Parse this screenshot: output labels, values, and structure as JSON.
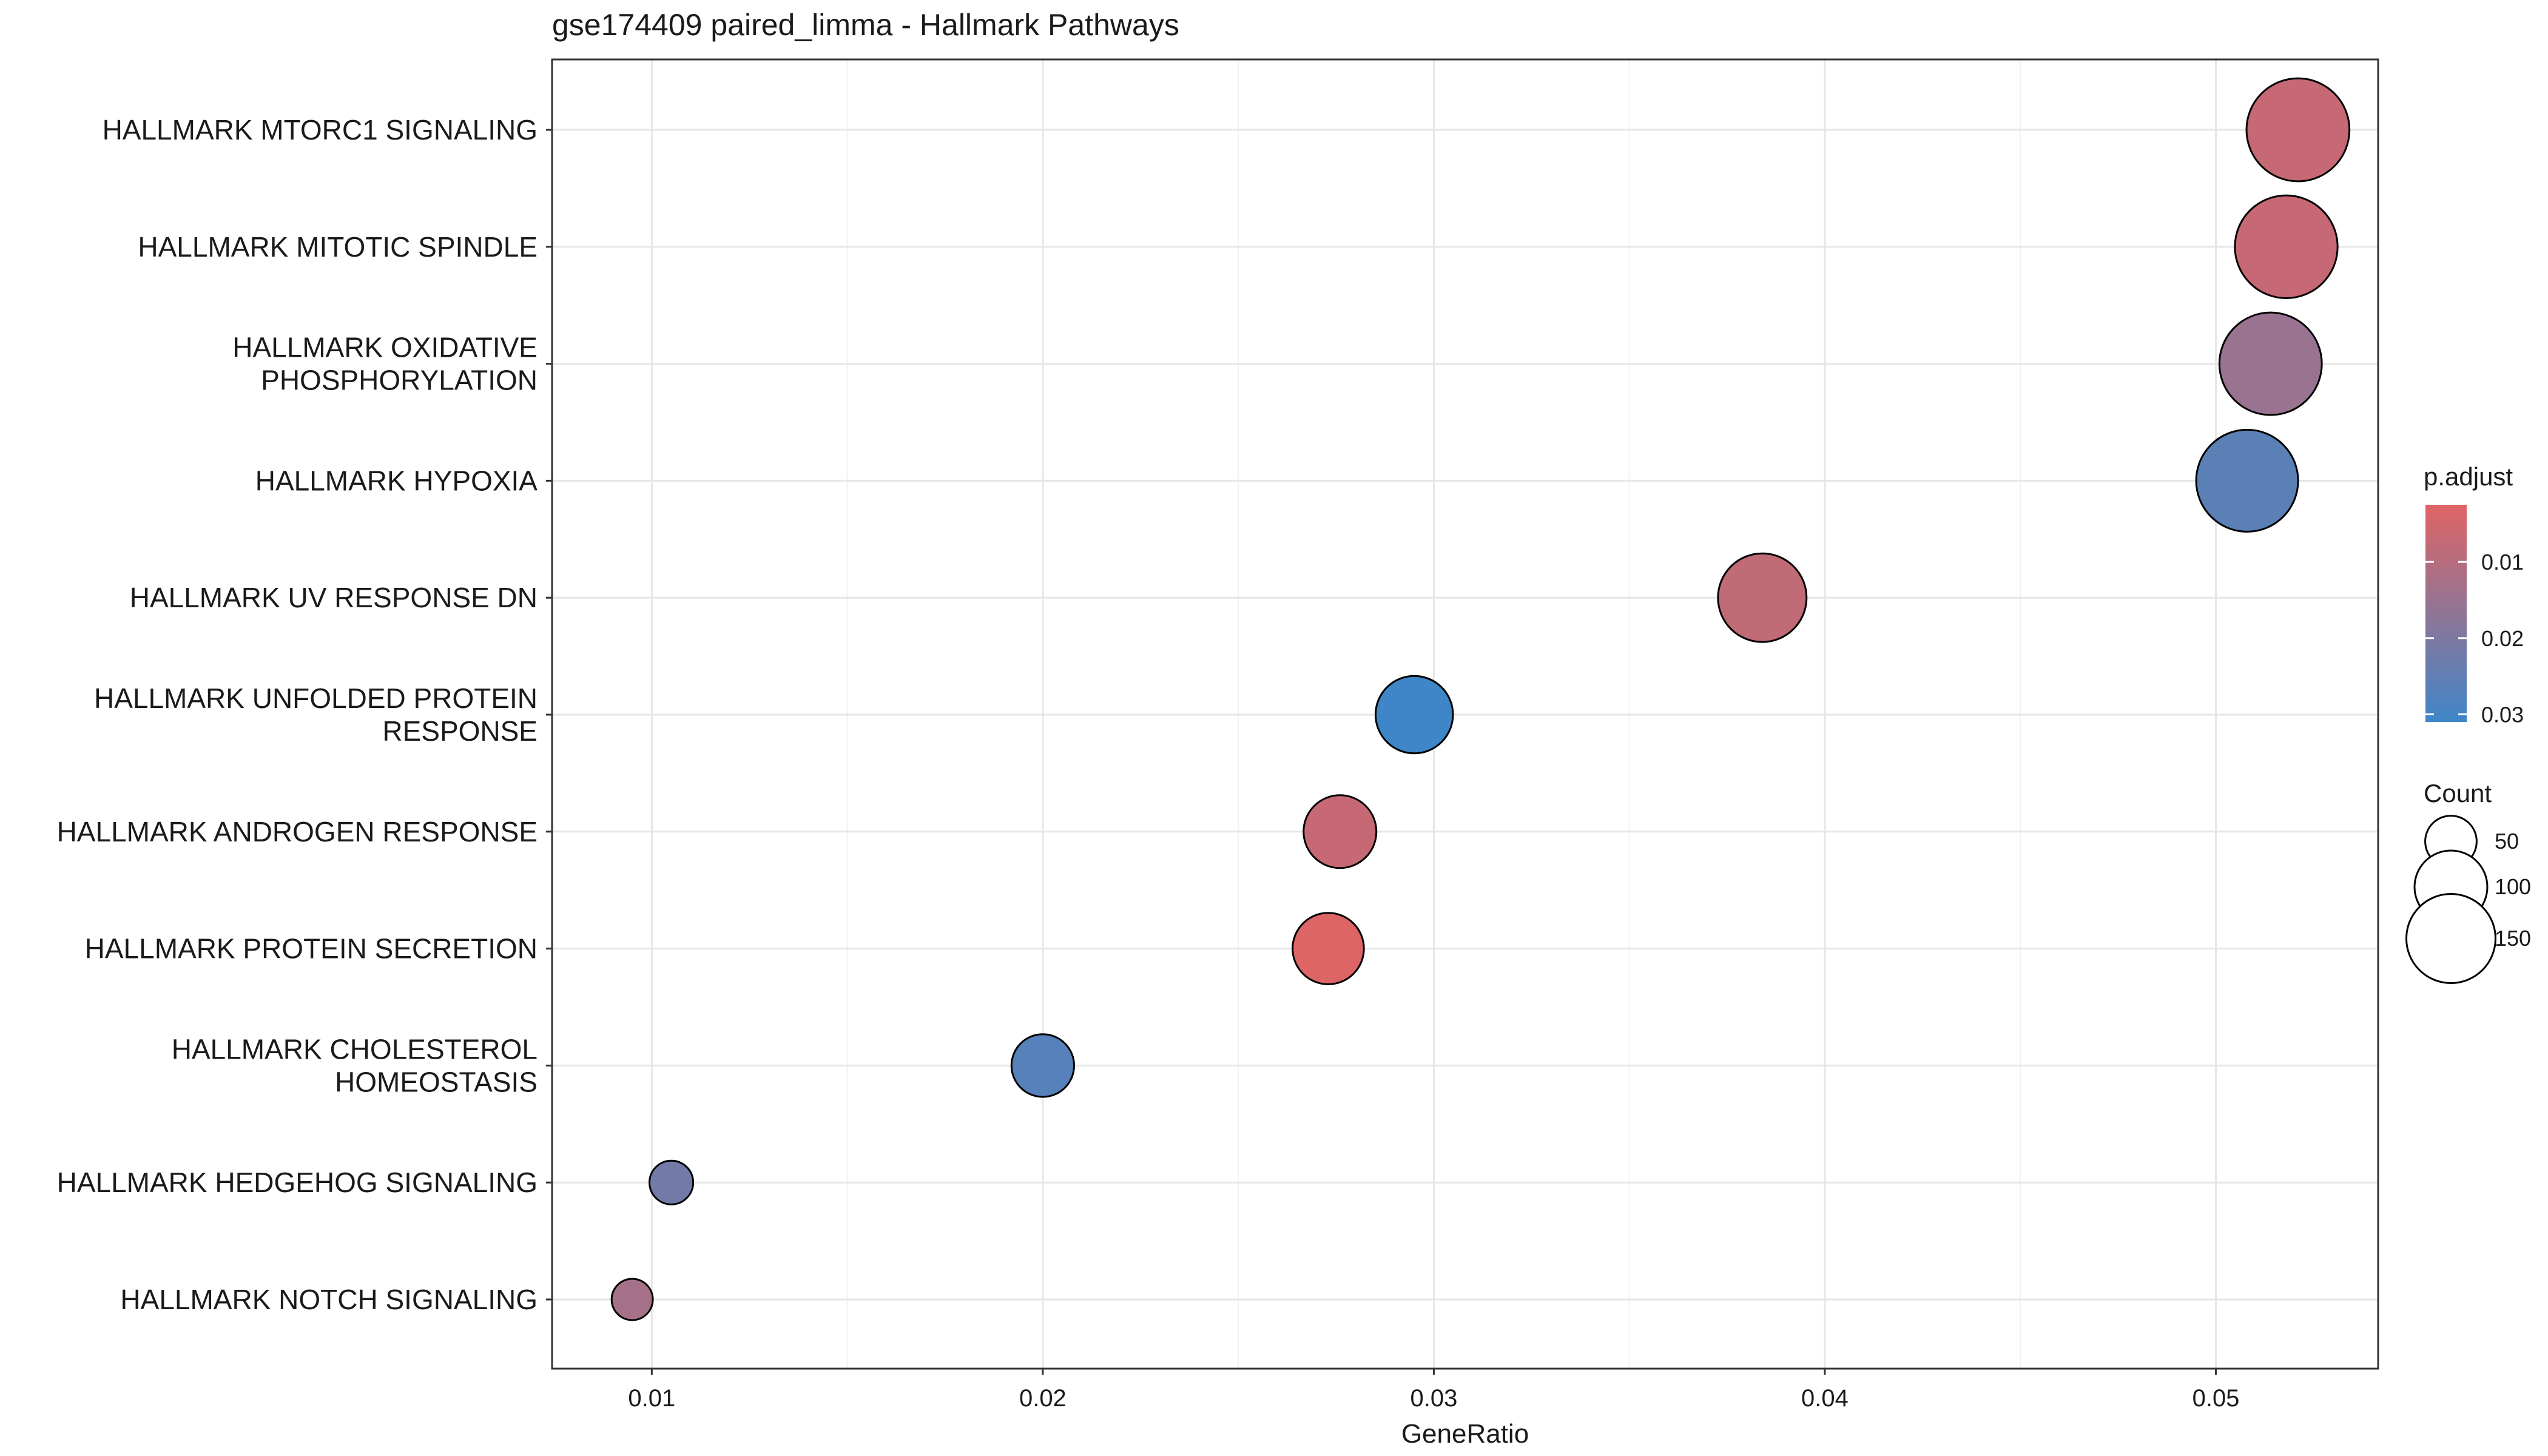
{
  "chart_data": {
    "type": "scatter",
    "title": "gse174409 paired_limma - Hallmark Pathways",
    "xlabel": "GeneRatio",
    "ylabel": "",
    "xlim": [
      0.00745,
      0.05415
    ],
    "x_ticks": [
      0.01,
      0.02,
      0.03,
      0.04,
      0.05
    ],
    "x_tick_labels": [
      "0.01",
      "0.02",
      "0.03",
      "0.04",
      "0.05"
    ],
    "grid": true,
    "categories": [
      [
        "HALLMARK MTORC1 SIGNALING"
      ],
      [
        "HALLMARK MITOTIC SPINDLE"
      ],
      [
        "HALLMARK OXIDATIVE",
        "PHOSPHORYLATION"
      ],
      [
        "HALLMARK HYPOXIA"
      ],
      [
        "HALLMARK UV RESPONSE DN"
      ],
      [
        "HALLMARK UNFOLDED PROTEIN",
        "RESPONSE"
      ],
      [
        "HALLMARK ANDROGEN RESPONSE"
      ],
      [
        "HALLMARK PROTEIN SECRETION"
      ],
      [
        "HALLMARK CHOLESTEROL",
        "HOMEOSTASIS"
      ],
      [
        "HALLMARK HEDGEHOG SIGNALING"
      ],
      [
        "HALLMARK NOTCH SIGNALING"
      ]
    ],
    "points": [
      {
        "gene_ratio": 0.0521,
        "count": 200,
        "p_adjust": 0.007
      },
      {
        "gene_ratio": 0.0518,
        "count": 199,
        "p_adjust": 0.007
      },
      {
        "gene_ratio": 0.0514,
        "count": 198,
        "p_adjust": 0.015
      },
      {
        "gene_ratio": 0.0508,
        "count": 196,
        "p_adjust": 0.026
      },
      {
        "gene_ratio": 0.0384,
        "count": 148,
        "p_adjust": 0.008
      },
      {
        "gene_ratio": 0.0295,
        "count": 113,
        "p_adjust": 0.031
      },
      {
        "gene_ratio": 0.0276,
        "count": 100,
        "p_adjust": 0.007
      },
      {
        "gene_ratio": 0.0273,
        "count": 96,
        "p_adjust": 0.003
      },
      {
        "gene_ratio": 0.02,
        "count": 74,
        "p_adjust": 0.027
      },
      {
        "gene_ratio": 0.0105,
        "count": 36,
        "p_adjust": 0.022
      },
      {
        "gene_ratio": 0.0095,
        "count": 32,
        "p_adjust": 0.013
      }
    ],
    "color_legend": {
      "title": "p.adjust",
      "min": 0.0025,
      "max": 0.031,
      "low_color": "#E06464",
      "high_color": "#3F86C8",
      "tick_values": [
        0.01,
        0.02,
        0.03
      ],
      "tick_labels": [
        "0.01",
        "0.02",
        "0.03"
      ],
      "placement": "right"
    },
    "size_legend": {
      "title": "Count",
      "values": [
        50,
        100,
        150
      ],
      "labels": [
        "50",
        "100",
        "150"
      ],
      "placement": "right"
    }
  }
}
